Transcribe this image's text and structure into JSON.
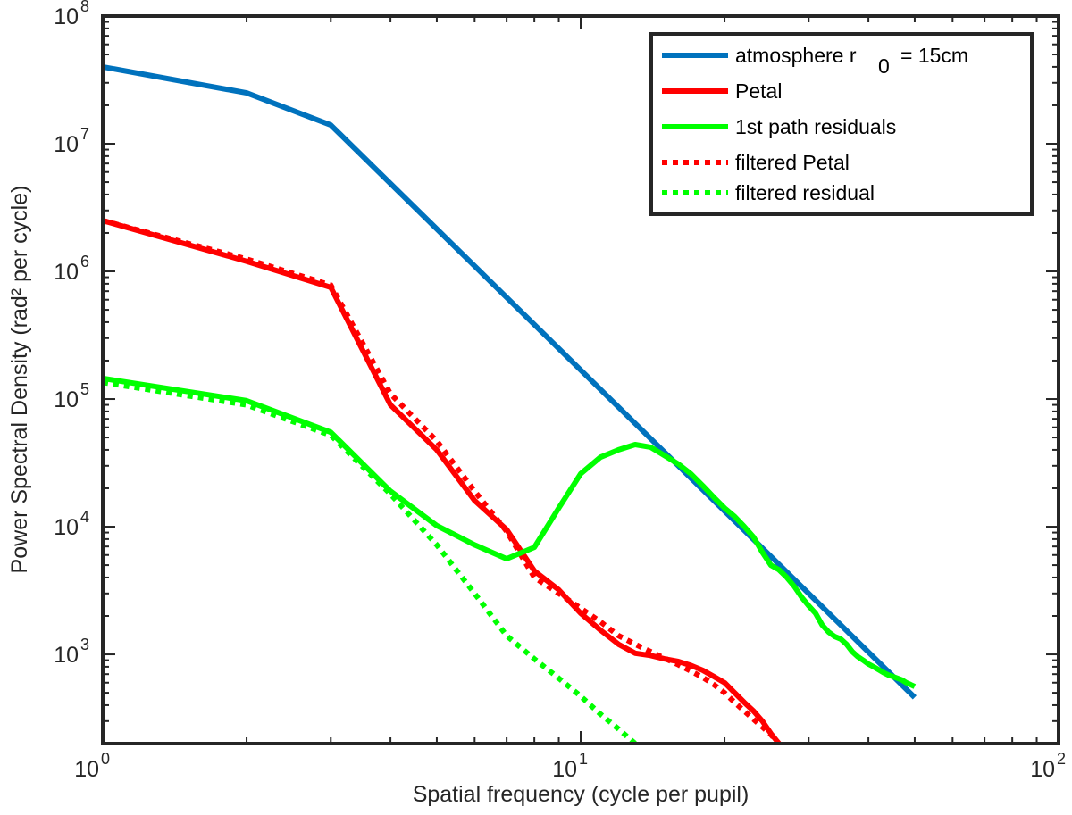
{
  "chart_data": {
    "type": "line",
    "x_scale": "log",
    "y_scale": "log",
    "xlim": [
      1,
      100
    ],
    "ylim": [
      200,
      100000000
    ],
    "xlabel": "Spatial frequency (cycle per pupil)",
    "ylabel": "Power Spectral Density (rad² per cycle)",
    "x_ticks": [
      {
        "value": 1,
        "base": "10",
        "exp": "0"
      },
      {
        "value": 10,
        "base": "10",
        "exp": "1"
      },
      {
        "value": 100,
        "base": "10",
        "exp": "2"
      }
    ],
    "y_ticks": [
      {
        "value": 1000,
        "base": "10",
        "exp": "3"
      },
      {
        "value": 10000,
        "base": "10",
        "exp": "4"
      },
      {
        "value": 100000,
        "base": "10",
        "exp": "5"
      },
      {
        "value": 1000000,
        "base": "10",
        "exp": "6"
      },
      {
        "value": 10000000,
        "base": "10",
        "exp": "7"
      },
      {
        "value": 100000000,
        "base": "10",
        "exp": "8"
      }
    ],
    "legend_position": "top-right",
    "series": [
      {
        "name": "atmosphere r0 = 15cm",
        "legend_text": "atmosphere r",
        "legend_sub": "0",
        "legend_suffix": "= 15cm",
        "color": "#0072BD",
        "style": "solid",
        "x": [
          1,
          2,
          3,
          50
        ],
        "y": [
          40000000,
          25000000,
          14000000,
          460
        ]
      },
      {
        "name": "Petal",
        "legend_text": "Petal",
        "color": "#FF0000",
        "style": "solid",
        "x": [
          1,
          2,
          3,
          4,
          5,
          6,
          7,
          8,
          9,
          10,
          11,
          12,
          13,
          14,
          15,
          16,
          17,
          18,
          19,
          20,
          21,
          22,
          23,
          24,
          25,
          26
        ],
        "y": [
          2500000,
          1200000,
          750000,
          90000,
          40000,
          16000,
          9500,
          4500,
          3200,
          2100,
          1550,
          1200,
          1020,
          980,
          920,
          880,
          820,
          750,
          670,
          600,
          500,
          420,
          360,
          300,
          240,
          200
        ]
      },
      {
        "name": "1st path residuals",
        "legend_text": "1st path residuals",
        "color": "#00FF00",
        "style": "solid",
        "x": [
          1,
          2,
          3,
          4,
          5,
          6,
          7,
          8,
          9,
          10,
          11,
          12,
          13,
          14,
          15,
          16,
          17,
          18,
          19,
          20,
          21,
          22,
          23,
          24,
          25,
          26,
          27,
          28,
          29,
          30,
          31,
          32,
          33,
          34,
          35,
          36,
          37,
          38,
          39,
          40,
          41,
          42,
          43,
          44,
          45,
          46,
          47,
          48,
          49,
          50
        ],
        "y": [
          145000,
          97000,
          55000,
          19000,
          10200,
          7200,
          5600,
          6900,
          14000,
          26000,
          35000,
          40000,
          44000,
          42000,
          36000,
          31000,
          26000,
          21000,
          17000,
          14000,
          12000,
          10000,
          8300,
          6300,
          5000,
          4600,
          4000,
          3400,
          2800,
          2400,
          2100,
          1700,
          1500,
          1380,
          1320,
          1200,
          1050,
          960,
          900,
          840,
          800,
          760,
          720,
          690,
          670,
          650,
          630,
          600,
          580,
          560
        ]
      },
      {
        "name": "filtered Petal",
        "legend_text": "filtered Petal",
        "color": "#FF0000",
        "style": "dotted",
        "x": [
          1,
          2,
          3,
          4,
          5,
          6,
          7,
          8,
          9,
          10,
          11,
          12,
          13,
          14,
          15,
          16,
          17,
          18,
          19,
          20,
          21,
          22,
          23,
          24,
          25,
          26
        ],
        "y": [
          2500000,
          1250000,
          780000,
          110000,
          47000,
          19000,
          9200,
          4000,
          3000,
          2300,
          1800,
          1400,
          1200,
          1050,
          930,
          830,
          740,
          660,
          580,
          500,
          420,
          360,
          310,
          270,
          235,
          200
        ]
      },
      {
        "name": "filtered residual",
        "legend_text": "filtered residual",
        "color": "#00FF00",
        "style": "dotted",
        "x": [
          1,
          2,
          3,
          4,
          5,
          6,
          7,
          8,
          9,
          10,
          11,
          12,
          13
        ],
        "y": [
          135000,
          90000,
          52000,
          18000,
          7200,
          3000,
          1400,
          920,
          650,
          470,
          340,
          260,
          200
        ]
      }
    ]
  }
}
